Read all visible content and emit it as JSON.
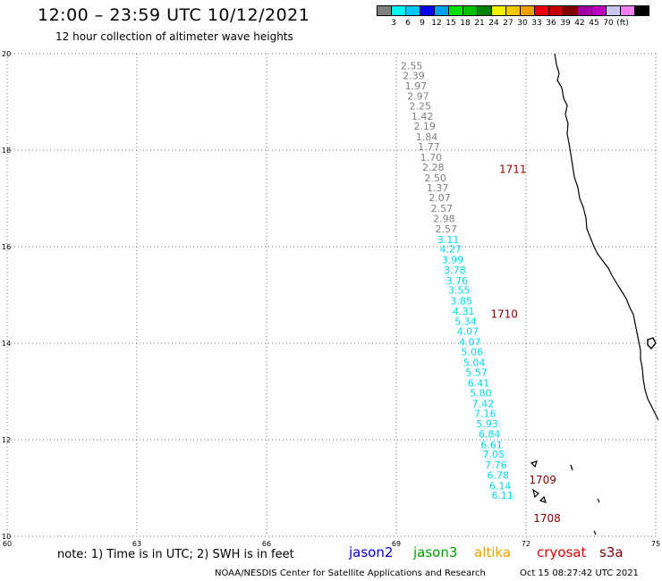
{
  "title": "12:00 – 23:59 UTC 10/12/2021",
  "subtitle": "12 hour collection of altimeter wave heights",
  "colorbar": {
    "colors": [
      "#7f7f7f",
      "#00f5f5",
      "#00c8f0",
      "#0000f0",
      "#00a0f0",
      "#00e000",
      "#00c000",
      "#008000",
      "#f0f000",
      "#f0c800",
      "#f0a000",
      "#f00000",
      "#c80000",
      "#800000",
      "#a000a0",
      "#c000c0",
      "#c8c8f0",
      "#f080f0",
      "#000000"
    ],
    "labels": [
      "3",
      "6",
      "9",
      "12",
      "15",
      "18",
      "21",
      "24",
      "27",
      "30",
      "33",
      "36",
      "39",
      "42",
      "45",
      "70",
      "(ft)"
    ]
  },
  "map": {
    "lon_range": [
      60,
      75
    ],
    "lat_range": [
      10,
      20
    ],
    "x_ticks": [
      "60",
      "63",
      "66",
      "69",
      "72",
      "75"
    ],
    "y_ticks": [
      "10",
      "12",
      "14",
      "16",
      "18",
      "20"
    ]
  },
  "wave_heights": [
    {
      "lon": 69.1,
      "lat": 19.75,
      "v": "2.55",
      "c": "#7f7f7f"
    },
    {
      "lon": 69.15,
      "lat": 19.55,
      "v": "2.39",
      "c": "#7f7f7f"
    },
    {
      "lon": 69.2,
      "lat": 19.33,
      "v": "1.97",
      "c": "#7f7f7f"
    },
    {
      "lon": 69.25,
      "lat": 19.12,
      "v": "2.97",
      "c": "#7f7f7f"
    },
    {
      "lon": 69.3,
      "lat": 18.92,
      "v": "2.25",
      "c": "#7f7f7f"
    },
    {
      "lon": 69.35,
      "lat": 18.7,
      "v": "1.42",
      "c": "#7f7f7f"
    },
    {
      "lon": 69.4,
      "lat": 18.5,
      "v": "2.19",
      "c": "#7f7f7f"
    },
    {
      "lon": 69.45,
      "lat": 18.28,
      "v": "1.84",
      "c": "#7f7f7f"
    },
    {
      "lon": 69.5,
      "lat": 18.07,
      "v": "1.77",
      "c": "#7f7f7f"
    },
    {
      "lon": 69.55,
      "lat": 17.85,
      "v": "1.70",
      "c": "#7f7f7f"
    },
    {
      "lon": 69.6,
      "lat": 17.65,
      "v": "2.28",
      "c": "#7f7f7f"
    },
    {
      "lon": 69.65,
      "lat": 17.43,
      "v": "2.50",
      "c": "#7f7f7f"
    },
    {
      "lon": 69.7,
      "lat": 17.22,
      "v": "1.37",
      "c": "#7f7f7f"
    },
    {
      "lon": 69.75,
      "lat": 17.02,
      "v": "2.07",
      "c": "#7f7f7f"
    },
    {
      "lon": 69.8,
      "lat": 16.8,
      "v": "2.57",
      "c": "#7f7f7f"
    },
    {
      "lon": 69.85,
      "lat": 16.58,
      "v": "2.98",
      "c": "#7f7f7f"
    },
    {
      "lon": 69.9,
      "lat": 16.37,
      "v": "2.57",
      "c": "#7f7f7f"
    },
    {
      "lon": 69.95,
      "lat": 16.15,
      "v": "3.11",
      "c": "#00d8e8"
    },
    {
      "lon": 70.0,
      "lat": 15.95,
      "v": "4.27",
      "c": "#00d8e8"
    },
    {
      "lon": 70.05,
      "lat": 15.73,
      "v": "3.99",
      "c": "#00d8e8"
    },
    {
      "lon": 70.1,
      "lat": 15.52,
      "v": "3.78",
      "c": "#00d8e8"
    },
    {
      "lon": 70.15,
      "lat": 15.3,
      "v": "3.76",
      "c": "#00d8e8"
    },
    {
      "lon": 70.2,
      "lat": 15.1,
      "v": "3.55",
      "c": "#00d8e8"
    },
    {
      "lon": 70.25,
      "lat": 14.88,
      "v": "3.85",
      "c": "#00d8e8"
    },
    {
      "lon": 70.3,
      "lat": 14.67,
      "v": "4.31",
      "c": "#00d8e8"
    },
    {
      "lon": 70.35,
      "lat": 14.45,
      "v": "5.34",
      "c": "#00d8e8"
    },
    {
      "lon": 70.4,
      "lat": 14.25,
      "v": "4.07",
      "c": "#00d8e8"
    },
    {
      "lon": 70.45,
      "lat": 14.03,
      "v": "4.07",
      "c": "#00d8e8"
    },
    {
      "lon": 70.5,
      "lat": 13.82,
      "v": "5.06",
      "c": "#00d8e8"
    },
    {
      "lon": 70.55,
      "lat": 13.6,
      "v": "5.04",
      "c": "#00d8e8"
    },
    {
      "lon": 70.6,
      "lat": 13.4,
      "v": "5.57",
      "c": "#00d8e8"
    },
    {
      "lon": 70.65,
      "lat": 13.18,
      "v": "6.41",
      "c": "#00d8e8"
    },
    {
      "lon": 70.7,
      "lat": 12.97,
      "v": "5.80",
      "c": "#00d8e8"
    },
    {
      "lon": 70.75,
      "lat": 12.75,
      "v": "7.42",
      "c": "#00d8e8"
    },
    {
      "lon": 70.8,
      "lat": 12.55,
      "v": "7.16",
      "c": "#00d8e8"
    },
    {
      "lon": 70.85,
      "lat": 12.33,
      "v": "5.93",
      "c": "#00d8e8"
    },
    {
      "lon": 70.9,
      "lat": 12.12,
      "v": "6.84",
      "c": "#00d8e8"
    },
    {
      "lon": 70.95,
      "lat": 11.9,
      "v": "6.61",
      "c": "#00d8e8"
    },
    {
      "lon": 71.0,
      "lat": 11.7,
      "v": "7.05",
      "c": "#00d8e8"
    },
    {
      "lon": 71.05,
      "lat": 11.48,
      "v": "7.76",
      "c": "#00d8e8"
    },
    {
      "lon": 71.1,
      "lat": 11.27,
      "v": "6.78",
      "c": "#00d8e8"
    },
    {
      "lon": 71.15,
      "lat": 11.05,
      "v": "6.14",
      "c": "#00d8e8"
    },
    {
      "lon": 71.2,
      "lat": 10.85,
      "v": "6.11",
      "c": "#00d8e8"
    }
  ],
  "cryosat_labels": [
    {
      "lon": 71.38,
      "lat": 17.6,
      "v": "1711"
    },
    {
      "lon": 71.18,
      "lat": 14.6,
      "v": "1710"
    },
    {
      "lon": 72.07,
      "lat": 11.17,
      "v": "1709"
    },
    {
      "lon": 72.17,
      "lat": 10.37,
      "v": "1708"
    }
  ],
  "note": "note: 1) Time is in UTC; 2) SWH is in feet",
  "legend": [
    {
      "name": "jason2",
      "color": "#0000d0"
    },
    {
      "name": "jason3",
      "color": "#00a000"
    },
    {
      "name": "altika",
      "color": "#f0a000"
    },
    {
      "name": "cryosat",
      "color": "#e00000"
    },
    {
      "name": "s3a",
      "color": "#800000"
    }
  ],
  "credit": "NOAA/NESDIS Center for Satellite Applications and Research",
  "timestamp": "Oct 15 08:27:42 UTC 2021"
}
